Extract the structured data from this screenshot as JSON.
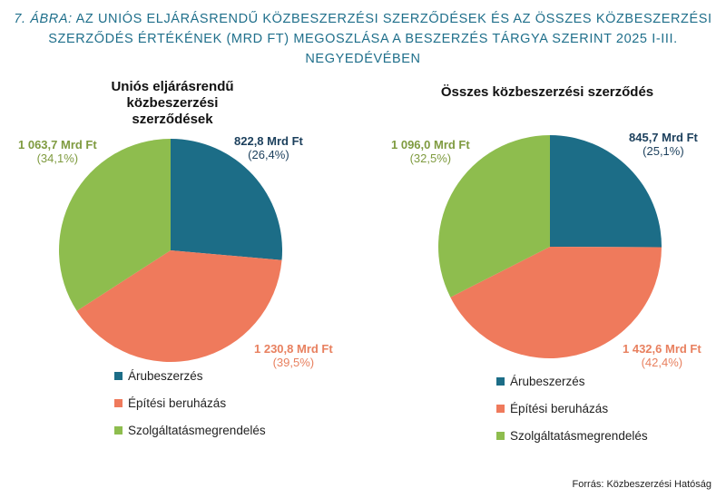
{
  "figure": {
    "number": "7. ÁBRA:",
    "title": "AZ UNIÓS ELJÁRÁSRENDŰ KÖZBESZERZÉSI SZERZŐDÉSEK ÉS AZ ÖSSZES KÖZBESZERZÉSI SZERZŐDÉS ÉRTÉKÉNEK (MRD FT) MEGOSZLÁSA A BESZERZÉS TÁRGYA SZERINT 2025 I-III. NEGYEDÉVÉBEN",
    "source": "Forrás: Közbeszerzési Hatóság"
  },
  "chart_data": [
    {
      "type": "pie",
      "title": "Uniós eljárásrendű közbeszerzési szerződések",
      "categories": [
        "Árubeszerzés",
        "Építési beruházás",
        "Szolgáltatásmegrendelés"
      ],
      "values": [
        822.8,
        1230.8,
        1063.7
      ],
      "value_labels": [
        "822,8 Mrd Ft",
        "1 230,8 Mrd Ft",
        "1 063,7 Mrd Ft"
      ],
      "percent_labels": [
        "(26,4%)",
        "(39,5%)",
        "(34,1%)"
      ],
      "colors": [
        "#1c6d87",
        "#ef7a5c",
        "#8ebd4e"
      ],
      "legend_position": "bottom-center"
    },
    {
      "type": "pie",
      "title": "Összes közbeszerzési szerződés",
      "categories": [
        "Árubeszerzés",
        "Építési beruházás",
        "Szolgáltatásmegrendelés"
      ],
      "values": [
        845.7,
        1432.6,
        1096.0
      ],
      "value_labels": [
        "845,7 Mrd Ft",
        "1 432,6 Mrd Ft",
        "1 096,0 Mrd Ft"
      ],
      "percent_labels": [
        "(25,1%)",
        "(42,4%)",
        "(32,5%)"
      ],
      "colors": [
        "#1c6d87",
        "#ef7a5c",
        "#8ebd4e"
      ],
      "legend_position": "bottom-center"
    }
  ],
  "label_colors": [
    "#1b3f5c",
    "#e8805f",
    "#7f9b40"
  ]
}
